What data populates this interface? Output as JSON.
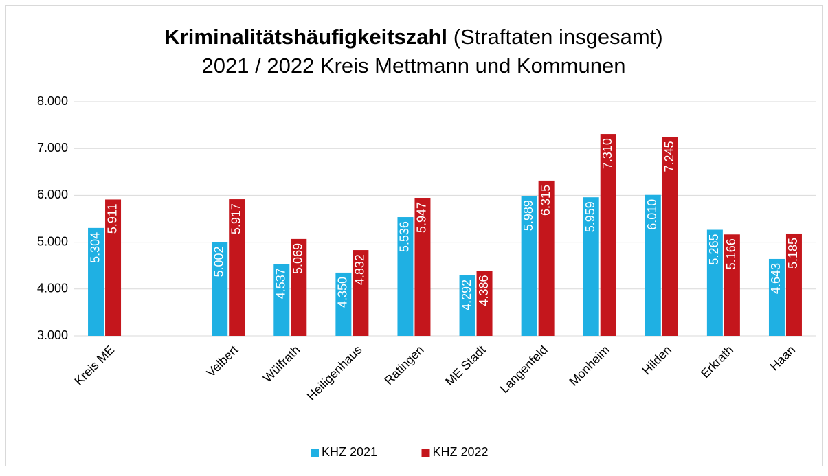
{
  "chart_data": {
    "type": "bar",
    "title": [
      "Kriminalitätshäufigkeitszahl",
      "(Straftaten insgesamt)"
    ],
    "subtitle": "2021 / 2022 Kreis Mettmann und Kommunen",
    "categories": [
      "Kreis ME",
      null,
      "Velbert",
      "Wülfrath",
      "Heiligenhaus",
      "Ratingen",
      "ME Stadt",
      "Langenfeld",
      "Monheim",
      "Hilden",
      "Erkrath",
      "Haan"
    ],
    "series": [
      {
        "name": "KHZ 2021",
        "color": "#1fb0e3",
        "values": [
          5304,
          null,
          5002,
          4537,
          4350,
          5536,
          4292,
          5989,
          5959,
          6010,
          5265,
          4643
        ],
        "value_labels": [
          "5.304",
          null,
          "5.002",
          "4.537",
          "4.350",
          "5.536",
          "4.292",
          "5.989",
          "5.959",
          "6.010",
          "5.265",
          "4.643"
        ]
      },
      {
        "name": "KHZ 2022",
        "color": "#c4161c",
        "values": [
          5911,
          null,
          5917,
          5069,
          4832,
          5947,
          4386,
          6315,
          7310,
          7245,
          5166,
          5185
        ],
        "value_labels": [
          "5.911",
          null,
          "5.917",
          "5.069",
          "4.832",
          "5.947",
          "4.386",
          "6.315",
          "7.310",
          "7.245",
          "5.166",
          "5.185"
        ]
      }
    ],
    "ylim": [
      3000,
      8000
    ],
    "yticks": [
      {
        "value": 3000,
        "label": "3.000"
      },
      {
        "value": 4000,
        "label": "4.000"
      },
      {
        "value": 5000,
        "label": "5.000"
      },
      {
        "value": 6000,
        "label": "6.000"
      },
      {
        "value": 7000,
        "label": "7.000"
      },
      {
        "value": 8000,
        "label": "8.000"
      }
    ],
    "grid": true,
    "legend": "bottom"
  }
}
